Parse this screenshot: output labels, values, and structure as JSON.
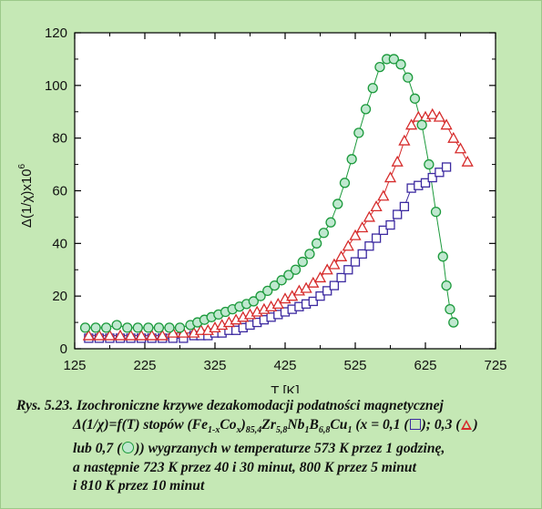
{
  "chart_data": {
    "type": "scatter",
    "xlabel": "T [K]",
    "ylabel": "Δ(1/χ)x10",
    "ylabel_sup": "6",
    "xlim": [
      125,
      725
    ],
    "ylim": [
      0,
      120
    ],
    "x_ticks": [
      125,
      225,
      325,
      425,
      525,
      625,
      725
    ],
    "y_ticks": [
      0,
      20,
      40,
      60,
      80,
      100,
      120
    ],
    "grid": false,
    "series": [
      {
        "marker": "square",
        "color": "#3c2aa0",
        "x": [
          145,
          160,
          175,
          190,
          205,
          220,
          235,
          250,
          265,
          280,
          295,
          305,
          315,
          325,
          335,
          345,
          355,
          365,
          375,
          385,
          395,
          405,
          415,
          425,
          435,
          445,
          455,
          465,
          475,
          485,
          495,
          505,
          515,
          525,
          535,
          545,
          555,
          565,
          575,
          585,
          595,
          605,
          615,
          625,
          635,
          645,
          655
        ],
        "y": [
          4,
          4,
          4,
          4,
          4,
          4,
          4,
          4,
          4,
          4,
          5,
          5,
          5,
          6,
          6,
          7,
          7,
          8,
          9,
          10,
          11,
          12,
          13,
          14,
          15,
          16,
          17,
          18,
          20,
          22,
          24,
          27,
          30,
          33,
          36,
          39,
          42,
          45,
          47,
          51,
          54,
          61,
          62,
          63,
          65,
          67,
          69
        ]
      },
      {
        "marker": "triangle",
        "color": "#d62b2b",
        "x": [
          145,
          160,
          175,
          190,
          205,
          220,
          235,
          250,
          265,
          280,
          295,
          305,
          315,
          325,
          335,
          345,
          355,
          365,
          375,
          385,
          395,
          405,
          415,
          425,
          435,
          445,
          455,
          465,
          475,
          485,
          495,
          505,
          515,
          525,
          535,
          545,
          555,
          565,
          575,
          585,
          595,
          605,
          615,
          625,
          635,
          645,
          655,
          665,
          675,
          685
        ],
        "y": [
          5,
          5,
          5,
          5,
          5,
          5,
          5,
          5,
          6,
          6,
          6,
          7,
          7,
          8,
          9,
          10,
          11,
          12,
          13,
          14,
          15,
          16,
          17,
          19,
          20,
          22,
          23,
          25,
          27,
          30,
          32,
          35,
          39,
          43,
          46,
          50,
          54,
          58,
          65,
          71,
          79,
          85,
          88,
          88,
          89,
          88,
          85,
          80,
          76,
          71
        ]
      },
      {
        "marker": "circle",
        "color": "#1c9a3c",
        "x": [
          140,
          155,
          170,
          185,
          200,
          215,
          230,
          245,
          260,
          275,
          290,
          300,
          310,
          320,
          330,
          340,
          350,
          360,
          370,
          380,
          390,
          400,
          410,
          420,
          430,
          440,
          450,
          460,
          470,
          480,
          490,
          500,
          510,
          520,
          530,
          540,
          550,
          560,
          570,
          580,
          590,
          600,
          610,
          620,
          630,
          640,
          650,
          655,
          660,
          665
        ],
        "y": [
          8,
          8,
          8,
          9,
          8,
          8,
          8,
          8,
          8,
          8,
          9,
          10,
          11,
          12,
          13,
          14,
          15,
          16,
          17,
          18,
          20,
          22,
          24,
          26,
          28,
          30,
          33,
          36,
          40,
          44,
          48,
          55,
          63,
          72,
          82,
          91,
          99,
          107,
          110,
          110,
          108,
          103,
          95,
          85,
          70,
          52,
          35,
          24,
          15,
          10
        ]
      }
    ]
  },
  "caption": {
    "line1": "Rys. 5.23. Izochroniczne krzywe dezakomodacji podatności magnetycznej",
    "line2": "Δ(1/χ)=f(T) stopów (Fe1-xCox)85,4Zr5,8Nb1B6,8Cu1 (x = 0,1 (□); 0,3 (△)",
    "line3": "lub 0,7 (○)) wygrzanych w temperaturze 573 K przez 1 godzinę,",
    "line4": "a następnie 723 K przez 40 i 30 minut, 800 K przez 5 minut",
    "line5": "i 810 K przez 10 minut"
  }
}
